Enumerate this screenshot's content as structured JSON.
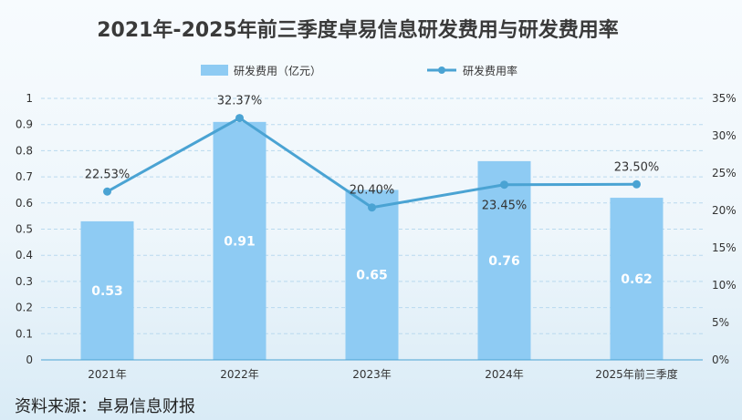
{
  "chart_data": {
    "type": "bar",
    "title": "2021年-2025年前三季度卓易信息研发费用与研发费用率",
    "categories": [
      "2021年",
      "2022年",
      "2023年",
      "2024年",
      "2025年前三季度"
    ],
    "series": [
      {
        "name": "研发费用（亿元）",
        "type": "bar",
        "axis": "left",
        "values": [
          0.53,
          0.91,
          0.65,
          0.76,
          0.62
        ],
        "labels": [
          "0.53",
          "0.91",
          "0.65",
          "0.76",
          "0.62"
        ],
        "color": "#8ecbf3"
      },
      {
        "name": "研发费用率",
        "type": "line",
        "axis": "right",
        "values": [
          22.53,
          32.37,
          20.4,
          23.45,
          23.5
        ],
        "labels": [
          "22.53%",
          "32.37%",
          "20.40%",
          "23.45%",
          "23.50%"
        ],
        "color": "#4aa3d3"
      }
    ],
    "y_left": {
      "range": [
        0,
        1
      ],
      "ticks": [
        0,
        0.1,
        0.2,
        0.3,
        0.4,
        0.5,
        0.6,
        0.7,
        0.8,
        0.9,
        1
      ],
      "tick_labels": [
        "0",
        "0.1",
        "0.2",
        "0.3",
        "0.4",
        "0.5",
        "0.6",
        "0.7",
        "0.8",
        "0.9",
        "1"
      ]
    },
    "y_right": {
      "range": [
        0,
        35
      ],
      "ticks": [
        0,
        5,
        10,
        15,
        20,
        25,
        30,
        35
      ],
      "tick_labels": [
        "0%",
        "5%",
        "10%",
        "15%",
        "20%",
        "25%",
        "30%",
        "35%"
      ]
    },
    "grid": true,
    "legend_position": "top-center"
  },
  "source": "资料来源：卓易信息财报"
}
